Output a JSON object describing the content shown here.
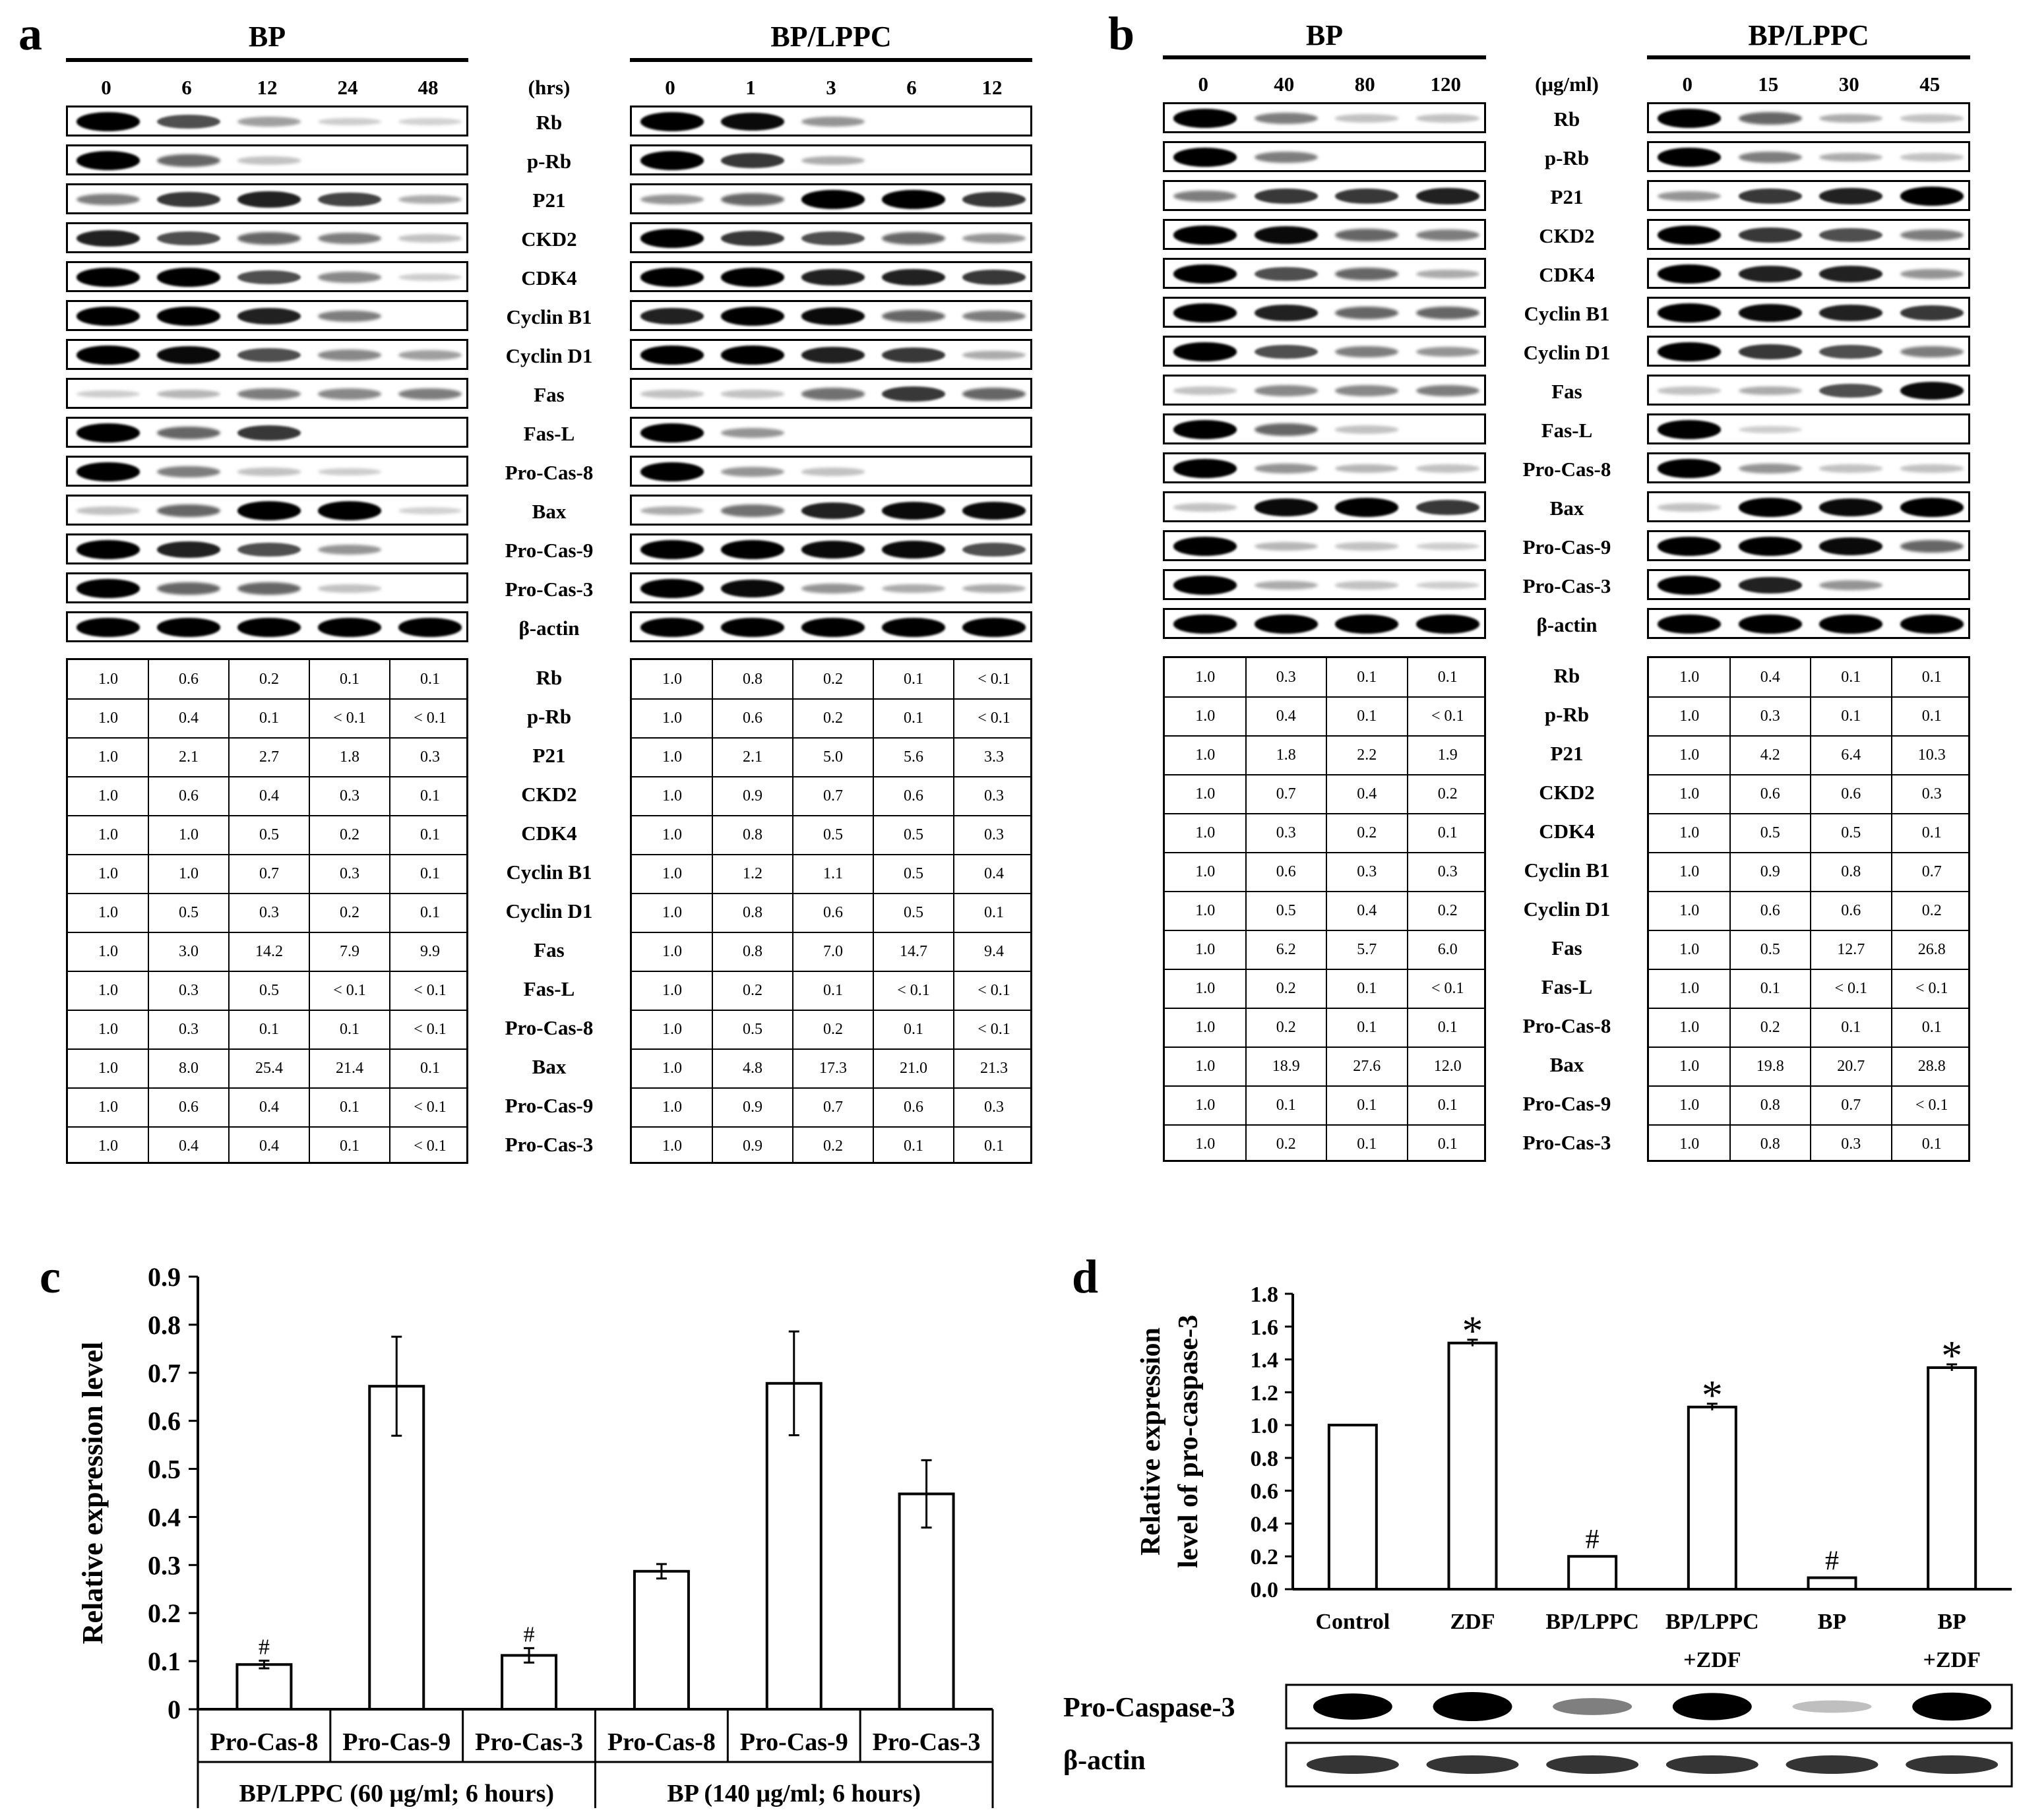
{
  "panel_a": {
    "letter": "a",
    "bp": {
      "title": "BP",
      "unit": "(hrs)",
      "lanes": [
        "0",
        "6",
        "12",
        "24",
        "48"
      ],
      "values": [
        [
          "1.0",
          "0.6",
          "0.2",
          "0.1",
          "0.1"
        ],
        [
          "1.0",
          "0.4",
          "0.1",
          "< 0.1",
          "< 0.1"
        ],
        [
          "1.0",
          "2.1",
          "2.7",
          "1.8",
          "0.3"
        ],
        [
          "1.0",
          "0.6",
          "0.4",
          "0.3",
          "0.1"
        ],
        [
          "1.0",
          "1.0",
          "0.5",
          "0.2",
          "0.1"
        ],
        [
          "1.0",
          "1.0",
          "0.7",
          "0.3",
          "0.1"
        ],
        [
          "1.0",
          "0.5",
          "0.3",
          "0.2",
          "0.1"
        ],
        [
          "1.0",
          "3.0",
          "14.2",
          "7.9",
          "9.9"
        ],
        [
          "1.0",
          "0.3",
          "0.5",
          "< 0.1",
          "< 0.1"
        ],
        [
          "1.0",
          "0.3",
          "0.1",
          "0.1",
          "< 0.1"
        ],
        [
          "1.0",
          "8.0",
          "25.4",
          "21.4",
          "0.1"
        ],
        [
          "1.0",
          "0.6",
          "0.4",
          "0.1",
          "< 0.1"
        ],
        [
          "1.0",
          "0.4",
          "0.4",
          "0.1",
          "< 0.1"
        ]
      ]
    },
    "lppc": {
      "title": "BP/LPPC",
      "lanes": [
        "0",
        "1",
        "3",
        "6",
        "12"
      ],
      "values": [
        [
          "1.0",
          "0.8",
          "0.2",
          "0.1",
          "< 0.1"
        ],
        [
          "1.0",
          "0.6",
          "0.2",
          "0.1",
          "< 0.1"
        ],
        [
          "1.0",
          "2.1",
          "5.0",
          "5.6",
          "3.3"
        ],
        [
          "1.0",
          "0.9",
          "0.7",
          "0.6",
          "0.3"
        ],
        [
          "1.0",
          "0.8",
          "0.5",
          "0.5",
          "0.3"
        ],
        [
          "1.0",
          "1.2",
          "1.1",
          "0.5",
          "0.4"
        ],
        [
          "1.0",
          "0.8",
          "0.6",
          "0.5",
          "0.1"
        ],
        [
          "1.0",
          "0.8",
          "7.0",
          "14.7",
          "9.4"
        ],
        [
          "1.0",
          "0.2",
          "0.1",
          "< 0.1",
          "< 0.1"
        ],
        [
          "1.0",
          "0.5",
          "0.2",
          "0.1",
          "< 0.1"
        ],
        [
          "1.0",
          "4.8",
          "17.3",
          "21.0",
          "21.3"
        ],
        [
          "1.0",
          "0.9",
          "0.7",
          "0.6",
          "0.3"
        ],
        [
          "1.0",
          "0.9",
          "0.2",
          "0.1",
          "0.1"
        ]
      ]
    },
    "blot_labels": [
      "Rb",
      "p-Rb",
      "P21",
      "CKD2",
      "CDK4",
      "Cyclin B1",
      "Cyclin D1",
      "Fas",
      "Fas-L",
      "Pro-Cas-8",
      "Bax",
      "Pro-Cas-9",
      "Pro-Cas-3",
      "β-actin"
    ],
    "table_labels": [
      "Rb",
      "p-Rb",
      "P21",
      "CKD2",
      "CDK4",
      "Cyclin B1",
      "Cyclin D1",
      "Fas",
      "Fas-L",
      "Pro-Cas-8",
      "Bax",
      "Pro-Cas-9",
      "Pro-Cas-3"
    ]
  },
  "panel_b": {
    "letter": "b",
    "bp": {
      "title": "BP",
      "unit": "(μg/ml)",
      "lanes": [
        "0",
        "40",
        "80",
        "120"
      ],
      "values": [
        [
          "1.0",
          "0.3",
          "0.1",
          "0.1"
        ],
        [
          "1.0",
          "0.4",
          "0.1",
          "< 0.1"
        ],
        [
          "1.0",
          "1.8",
          "2.2",
          "1.9"
        ],
        [
          "1.0",
          "0.7",
          "0.4",
          "0.2"
        ],
        [
          "1.0",
          "0.3",
          "0.2",
          "0.1"
        ],
        [
          "1.0",
          "0.6",
          "0.3",
          "0.3"
        ],
        [
          "1.0",
          "0.5",
          "0.4",
          "0.2"
        ],
        [
          "1.0",
          "6.2",
          "5.7",
          "6.0"
        ],
        [
          "1.0",
          "0.2",
          "0.1",
          "< 0.1"
        ],
        [
          "1.0",
          "0.2",
          "0.1",
          "0.1"
        ],
        [
          "1.0",
          "18.9",
          "27.6",
          "12.0"
        ],
        [
          "1.0",
          "0.1",
          "0.1",
          "0.1"
        ],
        [
          "1.0",
          "0.2",
          "0.1",
          "0.1"
        ]
      ]
    },
    "lppc": {
      "title": "BP/LPPC",
      "lanes": [
        "0",
        "15",
        "30",
        "45"
      ],
      "values": [
        [
          "1.0",
          "0.4",
          "0.1",
          "0.1"
        ],
        [
          "1.0",
          "0.3",
          "0.1",
          "0.1"
        ],
        [
          "1.0",
          "4.2",
          "6.4",
          "10.3"
        ],
        [
          "1.0",
          "0.6",
          "0.6",
          "0.3"
        ],
        [
          "1.0",
          "0.5",
          "0.5",
          "0.1"
        ],
        [
          "1.0",
          "0.9",
          "0.8",
          "0.7"
        ],
        [
          "1.0",
          "0.6",
          "0.6",
          "0.2"
        ],
        [
          "1.0",
          "0.5",
          "12.7",
          "26.8"
        ],
        [
          "1.0",
          "0.1",
          "< 0.1",
          "< 0.1"
        ],
        [
          "1.0",
          "0.2",
          "0.1",
          "0.1"
        ],
        [
          "1.0",
          "19.8",
          "20.7",
          "28.8"
        ],
        [
          "1.0",
          "0.8",
          "0.7",
          "< 0.1"
        ],
        [
          "1.0",
          "0.8",
          "0.3",
          "0.1"
        ]
      ]
    }
  },
  "chart_data": [
    {
      "panel": "c",
      "type": "bar",
      "ylabel": "Relative expression level",
      "ylim": [
        0,
        0.9
      ],
      "yticks": [
        "0",
        "0.1",
        "0.2",
        "0.3",
        "0.4",
        "0.5",
        "0.6",
        "0.7",
        "0.8",
        "0.9"
      ],
      "categories": [
        "Pro-Cas-8",
        "Pro-Cas-9",
        "Pro-Cas-3",
        "Pro-Cas-8",
        "Pro-Cas-9",
        "Pro-Cas-3"
      ],
      "values": [
        0.093,
        0.672,
        0.112,
        0.287,
        0.678,
        0.448
      ],
      "errors": [
        0.008,
        0.103,
        0.015,
        0.015,
        0.108,
        0.07
      ],
      "annotations": [
        "#",
        "",
        "#",
        "",
        "",
        ""
      ],
      "groups": [
        "BP/LPPC (60 μg/ml; 6 hours)",
        "BP (140 μg/ml; 6 hours)"
      ]
    },
    {
      "panel": "d",
      "type": "bar",
      "ylabel_lines": [
        "Relative expression",
        "level of pro-caspase-3"
      ],
      "ylim": [
        0,
        1.8
      ],
      "yticks": [
        "0.0",
        "0.2",
        "0.4",
        "0.6",
        "0.8",
        "1.0",
        "1.2",
        "1.4",
        "1.6",
        "1.8"
      ],
      "categories": [
        "Control",
        "ZDF",
        "BP/LPPC",
        "BP/LPPC\n+ZDF",
        "BP",
        "BP\n+ZDF"
      ],
      "values": [
        1.0,
        1.5,
        0.2,
        1.11,
        0.07,
        1.35
      ],
      "errors": [
        0,
        0.02,
        0,
        0.02,
        0,
        0.02
      ],
      "annotations": [
        "",
        "*",
        "#",
        "*",
        "#",
        "*"
      ],
      "blot_labels": [
        "Pro-Caspase-3",
        "β-actin"
      ]
    }
  ]
}
